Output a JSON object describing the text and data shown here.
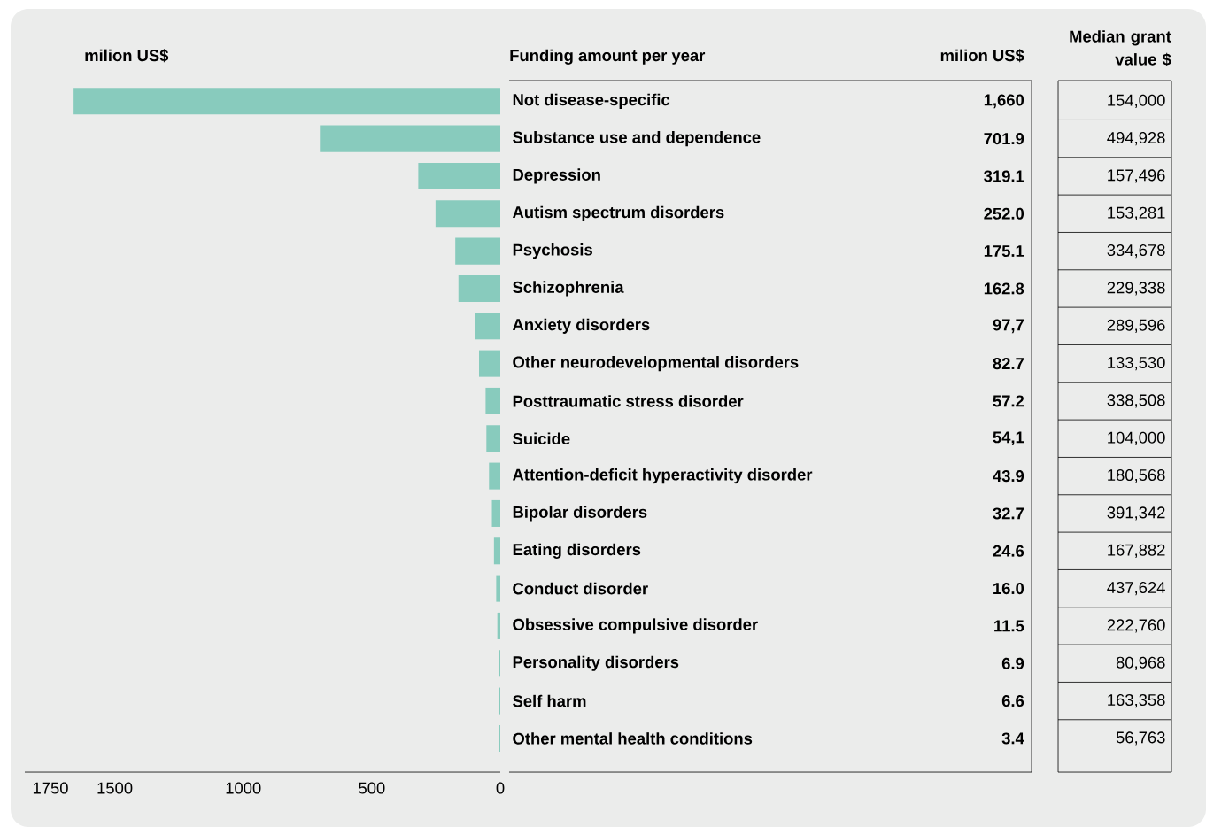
{
  "chart_data": [
    {
      "type": "bar",
      "orientation": "horizontal",
      "xlabel": "milion US$",
      "ylabel": "Funding amount per year",
      "categories": [
        "Not disease-specific",
        "Substance use and dependence",
        "Depression",
        "Autism spectrum disorders",
        "Psychosis",
        "Schizophrenia",
        "Anxiety disorders",
        "Other neurodevelopmental disorders",
        "Posttraumatic stress disorder",
        "Suicide",
        "Attention-deficit hyperactivity disorder",
        "Bipolar disorders",
        "Eating disorders",
        "Conduct disorder",
        "Obsessive compulsive disorder",
        "Personality disorders",
        "Self harm",
        "Other mental health conditions"
      ],
      "values": [
        1660,
        701.9,
        319.1,
        252.0,
        175.1,
        162.8,
        97.7,
        82.7,
        57.2,
        54.1,
        43.9,
        32.7,
        24.6,
        16.0,
        11.5,
        6.9,
        6.6,
        3.4
      ],
      "value_labels": [
        "1,660",
        "701.9",
        "319.1",
        "252.0",
        "175.1",
        "162.8",
        "97,7",
        "82.7",
        "57.2",
        "54,1",
        "43.9",
        "32.7",
        "24.6",
        "16.0",
        "11.5",
        "6.9",
        "6.6",
        "3.4"
      ],
      "color": "#88cbbd",
      "xlim": [
        1850,
        0
      ],
      "xticks": [
        1750,
        1500,
        1000,
        500,
        0
      ],
      "annotations": [
        "milion US$"
      ]
    },
    {
      "type": "other",
      "title": "Median grant value $",
      "values": [
        154000,
        494928,
        157496,
        153281,
        334678,
        229338,
        289596,
        133530,
        338508,
        104000,
        180568,
        391342,
        167882,
        437624,
        222760,
        80968,
        163358,
        56763
      ],
      "value_labels": [
        "154,000",
        "494,928",
        "157,496",
        "153,281",
        "334,678",
        "229,338",
        "289,596",
        "133,530",
        "338,508",
        "104,000",
        "180,568",
        "391,342",
        "167,882",
        "437,624",
        "222,760",
        "80,968",
        "163,358",
        "56,763"
      ]
    }
  ]
}
